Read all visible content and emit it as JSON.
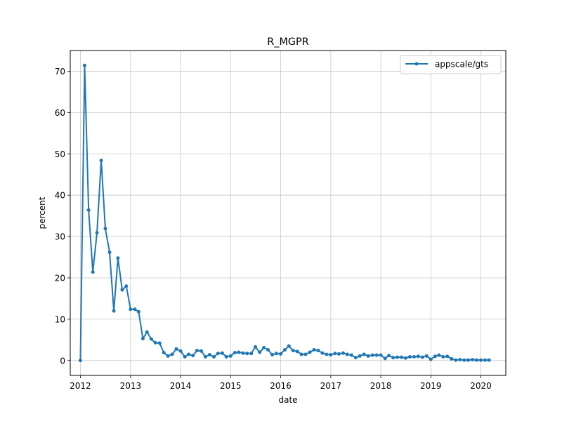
{
  "chart_data": {
    "type": "line",
    "title": "R_MGPR",
    "xlabel": "date",
    "ylabel": "percent",
    "x_ticks": [
      "2012",
      "2013",
      "2014",
      "2015",
      "2016",
      "2017",
      "2018",
      "2019",
      "2020"
    ],
    "y_ticks": [
      "0",
      "10",
      "20",
      "30",
      "40",
      "50",
      "60",
      "70"
    ],
    "xlim": [
      "2011-10-19",
      "2020-07-01"
    ],
    "ylim": [
      -3.6,
      75
    ],
    "grid": true,
    "legend_position": "top-right",
    "series": [
      {
        "name": "appscale/gts",
        "color": "#1f77b4",
        "x": [
          "2012-01-01",
          "2012-02-01",
          "2012-03-01",
          "2012-04-01",
          "2012-05-01",
          "2012-06-01",
          "2012-07-01",
          "2012-08-01",
          "2012-09-01",
          "2012-10-01",
          "2012-11-01",
          "2012-12-01",
          "2013-01-01",
          "2013-02-01",
          "2013-03-01",
          "2013-04-01",
          "2013-05-01",
          "2013-06-01",
          "2013-07-01",
          "2013-08-01",
          "2013-09-01",
          "2013-10-01",
          "2013-11-01",
          "2013-12-01",
          "2014-01-01",
          "2014-02-01",
          "2014-03-01",
          "2014-04-01",
          "2014-05-01",
          "2014-06-01",
          "2014-07-01",
          "2014-08-01",
          "2014-09-01",
          "2014-10-01",
          "2014-11-01",
          "2014-12-01",
          "2015-01-01",
          "2015-02-01",
          "2015-03-01",
          "2015-04-01",
          "2015-05-01",
          "2015-06-01",
          "2015-07-01",
          "2015-08-01",
          "2015-09-01",
          "2015-10-01",
          "2015-11-01",
          "2015-12-01",
          "2016-01-01",
          "2016-02-01",
          "2016-03-01",
          "2016-04-01",
          "2016-05-01",
          "2016-06-01",
          "2016-07-01",
          "2016-08-01",
          "2016-09-01",
          "2016-10-01",
          "2016-11-01",
          "2016-12-01",
          "2017-01-01",
          "2017-02-01",
          "2017-03-01",
          "2017-04-01",
          "2017-05-01",
          "2017-06-01",
          "2017-07-01",
          "2017-08-01",
          "2017-09-01",
          "2017-10-01",
          "2017-11-01",
          "2017-12-01",
          "2018-01-01",
          "2018-02-01",
          "2018-03-01",
          "2018-04-01",
          "2018-05-01",
          "2018-06-01",
          "2018-07-01",
          "2018-08-01",
          "2018-09-01",
          "2018-10-01",
          "2018-11-01",
          "2018-12-01",
          "2019-01-01",
          "2019-02-01",
          "2019-03-01",
          "2019-04-01",
          "2019-05-01",
          "2019-06-01",
          "2019-07-01",
          "2019-08-01",
          "2019-09-01",
          "2019-10-01",
          "2019-11-01",
          "2019-12-01",
          "2020-01-01",
          "2020-02-01",
          "2020-03-01"
        ],
        "y": [
          0,
          71.4,
          36.4,
          21.4,
          30.9,
          48.4,
          31.9,
          26.2,
          12.0,
          24.8,
          17.1,
          18.0,
          12.4,
          12.4,
          11.8,
          5.3,
          6.9,
          5.2,
          4.3,
          4.2,
          1.9,
          1.1,
          1.5,
          2.8,
          2.3,
          0.9,
          1.5,
          1.2,
          2.4,
          2.3,
          0.9,
          1.4,
          0.9,
          1.7,
          1.8,
          0.9,
          1.1,
          1.9,
          2.0,
          1.8,
          1.7,
          1.7,
          3.3,
          2.0,
          3.1,
          2.6,
          1.4,
          1.7,
          1.6,
          2.6,
          3.5,
          2.4,
          2.2,
          1.5,
          1.5,
          2.0,
          2.6,
          2.4,
          1.8,
          1.5,
          1.4,
          1.7,
          1.6,
          1.8,
          1.5,
          1.3,
          0.7,
          1.1,
          1.5,
          1.1,
          1.3,
          1.3,
          1.3,
          0.5,
          1.2,
          0.7,
          0.8,
          0.8,
          0.6,
          0.9,
          0.9,
          1.0,
          0.8,
          1.1,
          0.3,
          1.0,
          1.3,
          0.9,
          1.0,
          0.4,
          0.1,
          0.2,
          0.1,
          0.1,
          0.2,
          0.1,
          0.1,
          0.1,
          0.1
        ]
      }
    ]
  }
}
